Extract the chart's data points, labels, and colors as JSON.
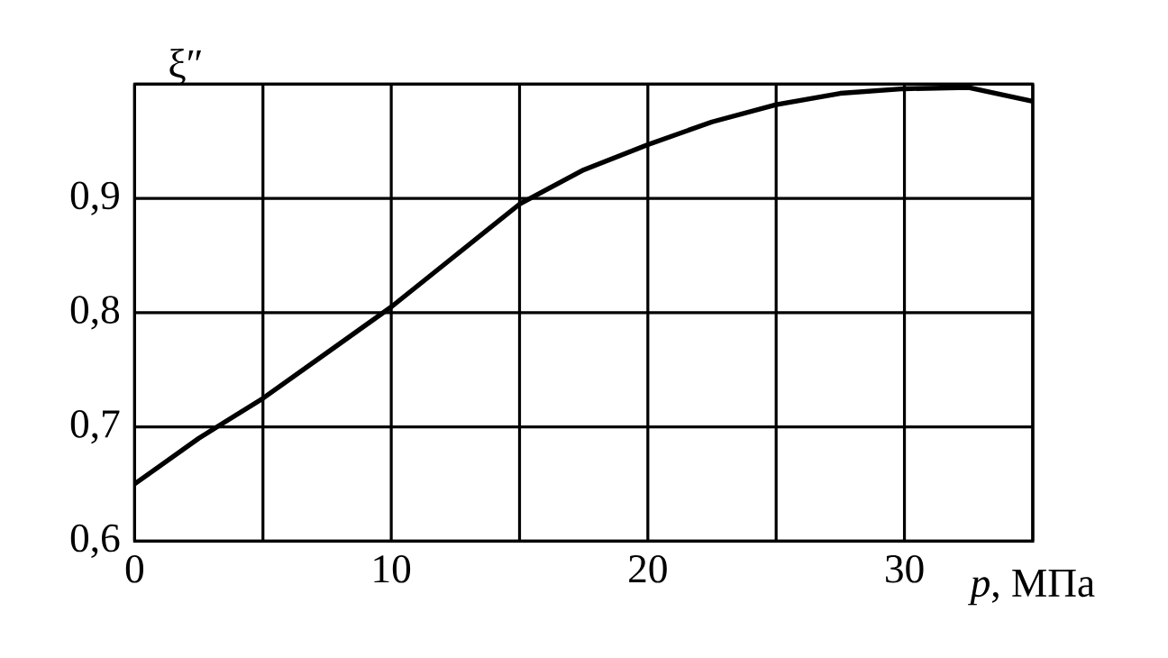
{
  "chart_data": {
    "type": "line",
    "xlabel": "*p*, МПа",
    "ylabel": "ξ″",
    "x": [
      0,
      2.5,
      5,
      7.5,
      10,
      12.5,
      15,
      17.5,
      20,
      22.5,
      25,
      27.5,
      30,
      32.5,
      35
    ],
    "series": [
      {
        "color": "#000000",
        "values": [
          0.65,
          0.69,
          0.725,
          0.765,
          0.805,
          0.85,
          0.895,
          0.925,
          0.947,
          0.967,
          0.982,
          0.992,
          0.996,
          0.997,
          0.985
        ]
      }
    ],
    "xlim": [
      0,
      35
    ],
    "ylim": [
      0.6,
      1.0
    ],
    "xticks": [
      0,
      {
        "value": 5,
        "label": null
      },
      10,
      {
        "value": 15,
        "label": null
      },
      20,
      {
        "value": 25,
        "label": null
      },
      30,
      {
        "value": 35,
        "label": null
      }
    ],
    "yticks": [
      {
        "value": 0.6,
        "label": "0,6"
      },
      {
        "value": 0.7,
        "label": "0,7"
      },
      {
        "value": 0.8,
        "label": "0,8"
      },
      {
        "value": 0.9,
        "label": "0,9"
      },
      {
        "value": 1.0,
        "label": null
      }
    ],
    "grid": true,
    "marker": "none",
    "line_style": "solid"
  }
}
